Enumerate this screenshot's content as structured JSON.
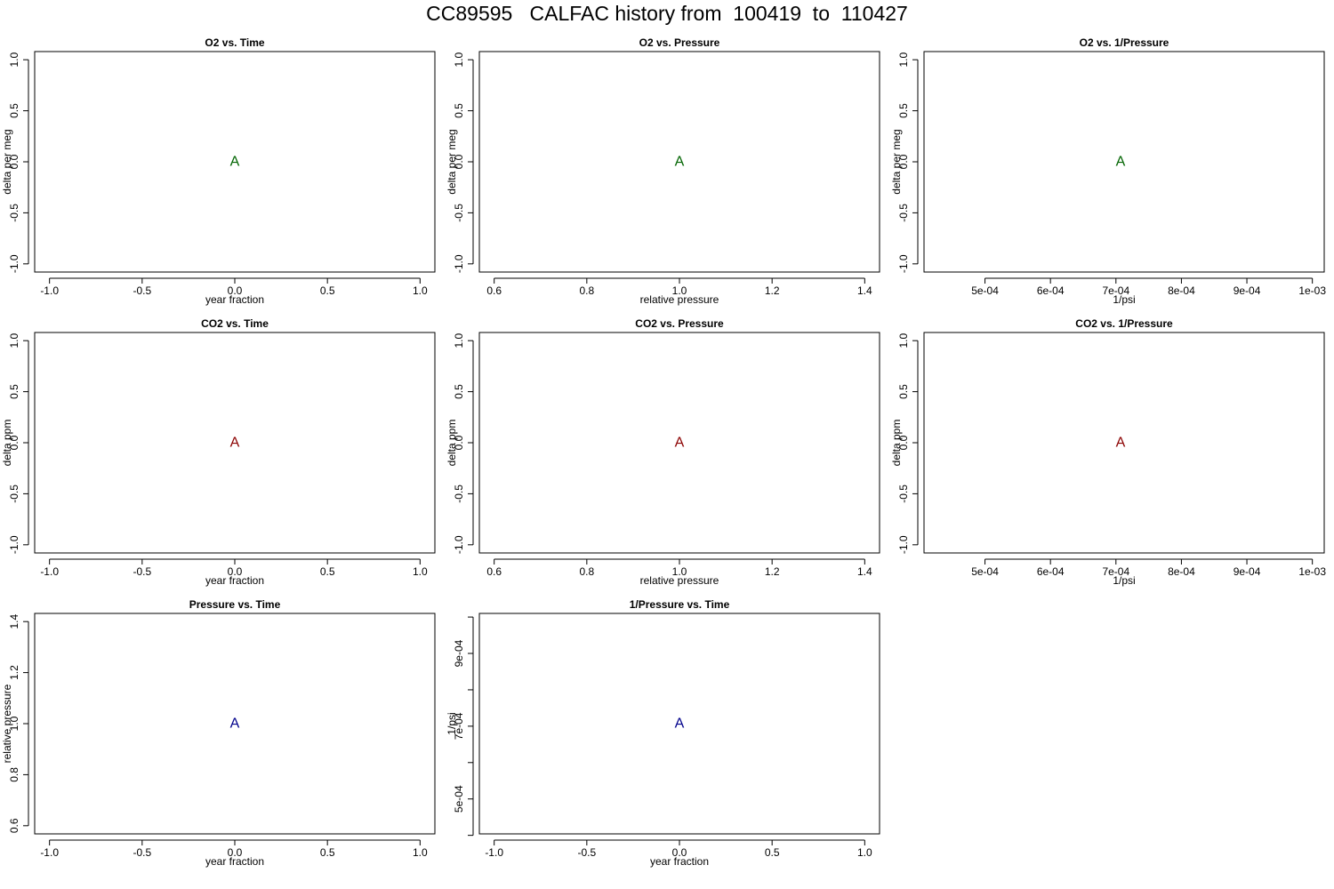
{
  "page_title": "CC89595   CALFAC history from  100419  to  110427",
  "colors": {
    "o2": "#006400",
    "co2": "#8b0000",
    "pressure": "#00008b",
    "axis": "#000000"
  },
  "chart_data": [
    {
      "type": "scatter",
      "title": "O2 vs. Time",
      "xlabel": "year fraction",
      "ylabel": "delta per meg",
      "xlim": [
        -1.08,
        1.08
      ],
      "ylim": [
        -1.08,
        1.08
      ],
      "xticks": [
        -1.0,
        -0.5,
        0.0,
        0.5,
        1.0
      ],
      "xtick_labels": [
        "-1.0",
        "-0.5",
        "0.0",
        "0.5",
        "1.0"
      ],
      "yticks": [
        -1.0,
        -0.5,
        0.0,
        0.5,
        1.0
      ],
      "ytick_labels": [
        "-1.0",
        "-0.5",
        "0.0",
        "0.5",
        "1.0"
      ],
      "color": "o2",
      "points": [
        {
          "x": 0.0,
          "y": 0.0,
          "label": "A"
        }
      ]
    },
    {
      "type": "scatter",
      "title": "O2 vs. Pressure",
      "xlabel": "relative pressure",
      "ylabel": "delta per meg",
      "xlim": [
        0.568,
        1.432
      ],
      "ylim": [
        -1.08,
        1.08
      ],
      "xticks": [
        0.6,
        0.8,
        1.0,
        1.2,
        1.4
      ],
      "xtick_labels": [
        "0.6",
        "0.8",
        "1.0",
        "1.2",
        "1.4"
      ],
      "yticks": [
        -1.0,
        -0.5,
        0.0,
        0.5,
        1.0
      ],
      "ytick_labels": [
        "-1.0",
        "-0.5",
        "0.0",
        "0.5",
        "1.0"
      ],
      "color": "o2",
      "points": [
        {
          "x": 1.0,
          "y": 0.0,
          "label": "A"
        }
      ]
    },
    {
      "type": "scatter",
      "title": "O2 vs. 1/Pressure",
      "xlabel": "1/psi",
      "ylabel": "delta per meg",
      "xlim": [
        0.0004069,
        0.0010181
      ],
      "ylim": [
        -1.08,
        1.08
      ],
      "xticks": [
        0.0005,
        0.0006,
        0.0007,
        0.0008,
        0.0009,
        0.001
      ],
      "xtick_labels": [
        "5e-04",
        "6e-04",
        "7e-04",
        "8e-04",
        "9e-04",
        "1e-03"
      ],
      "yticks": [
        -1.0,
        -0.5,
        0.0,
        0.5,
        1.0
      ],
      "ytick_labels": [
        "-1.0",
        "-0.5",
        "0.0",
        "0.5",
        "1.0"
      ],
      "color": "o2",
      "points": [
        {
          "x": 0.000707,
          "y": 0.0,
          "label": "A"
        }
      ]
    },
    {
      "type": "scatter",
      "title": "CO2 vs. Time",
      "xlabel": "year fraction",
      "ylabel": "delta ppm",
      "xlim": [
        -1.08,
        1.08
      ],
      "ylim": [
        -1.08,
        1.08
      ],
      "xticks": [
        -1.0,
        -0.5,
        0.0,
        0.5,
        1.0
      ],
      "xtick_labels": [
        "-1.0",
        "-0.5",
        "0.0",
        "0.5",
        "1.0"
      ],
      "yticks": [
        -1.0,
        -0.5,
        0.0,
        0.5,
        1.0
      ],
      "ytick_labels": [
        "-1.0",
        "-0.5",
        "0.0",
        "0.5",
        "1.0"
      ],
      "color": "co2",
      "points": [
        {
          "x": 0.0,
          "y": 0.0,
          "label": "A"
        }
      ]
    },
    {
      "type": "scatter",
      "title": "CO2 vs. Pressure",
      "xlabel": "relative pressure",
      "ylabel": "delta ppm",
      "xlim": [
        0.568,
        1.432
      ],
      "ylim": [
        -1.08,
        1.08
      ],
      "xticks": [
        0.6,
        0.8,
        1.0,
        1.2,
        1.4
      ],
      "xtick_labels": [
        "0.6",
        "0.8",
        "1.0",
        "1.2",
        "1.4"
      ],
      "yticks": [
        -1.0,
        -0.5,
        0.0,
        0.5,
        1.0
      ],
      "ytick_labels": [
        "-1.0",
        "-0.5",
        "0.0",
        "0.5",
        "1.0"
      ],
      "color": "co2",
      "points": [
        {
          "x": 1.0,
          "y": 0.0,
          "label": "A"
        }
      ]
    },
    {
      "type": "scatter",
      "title": "CO2 vs. 1/Pressure",
      "xlabel": "1/psi",
      "ylabel": "delta ppm",
      "xlim": [
        0.0004069,
        0.0010181
      ],
      "ylim": [
        -1.08,
        1.08
      ],
      "xticks": [
        0.0005,
        0.0006,
        0.0007,
        0.0008,
        0.0009,
        0.001
      ],
      "xtick_labels": [
        "5e-04",
        "6e-04",
        "7e-04",
        "8e-04",
        "9e-04",
        "1e-03"
      ],
      "yticks": [
        -1.0,
        -0.5,
        0.0,
        0.5,
        1.0
      ],
      "ytick_labels": [
        "-1.0",
        "-0.5",
        "0.0",
        "0.5",
        "1.0"
      ],
      "color": "co2",
      "points": [
        {
          "x": 0.000707,
          "y": 0.0,
          "label": "A"
        }
      ]
    },
    {
      "type": "scatter",
      "title": "Pressure vs. Time",
      "xlabel": "year fraction",
      "ylabel": "relative pressure",
      "xlim": [
        -1.08,
        1.08
      ],
      "ylim": [
        0.568,
        1.432
      ],
      "xticks": [
        -1.0,
        -0.5,
        0.0,
        0.5,
        1.0
      ],
      "xtick_labels": [
        "-1.0",
        "-0.5",
        "0.0",
        "0.5",
        "1.0"
      ],
      "yticks": [
        0.6,
        0.8,
        1.0,
        1.2,
        1.4
      ],
      "ytick_labels": [
        "0.6",
        "0.8",
        "1.0",
        "1.2",
        "1.4"
      ],
      "color": "pressure",
      "points": [
        {
          "x": 0.0,
          "y": 1.0,
          "label": "A"
        }
      ]
    },
    {
      "type": "scatter",
      "title": "1/Pressure vs. Time",
      "xlabel": "year fraction",
      "ylabel": "1/psi",
      "xlim": [
        -1.08,
        1.08
      ],
      "ylim": [
        0.000404,
        0.00101
      ],
      "xticks": [
        -1.0,
        -0.5,
        0.0,
        0.5,
        1.0
      ],
      "xtick_labels": [
        "-1.0",
        "-0.5",
        "0.0",
        "0.5",
        "1.0"
      ],
      "yticks": [
        0.0004,
        0.0005,
        0.0006,
        0.0007,
        0.0008,
        0.0009,
        0.001
      ],
      "ytick_labels": [
        "",
        "5e-04",
        "",
        "7e-04",
        "",
        "9e-04",
        ""
      ],
      "color": "pressure",
      "points": [
        {
          "x": 0.0,
          "y": 0.000707,
          "label": "A"
        }
      ]
    }
  ]
}
